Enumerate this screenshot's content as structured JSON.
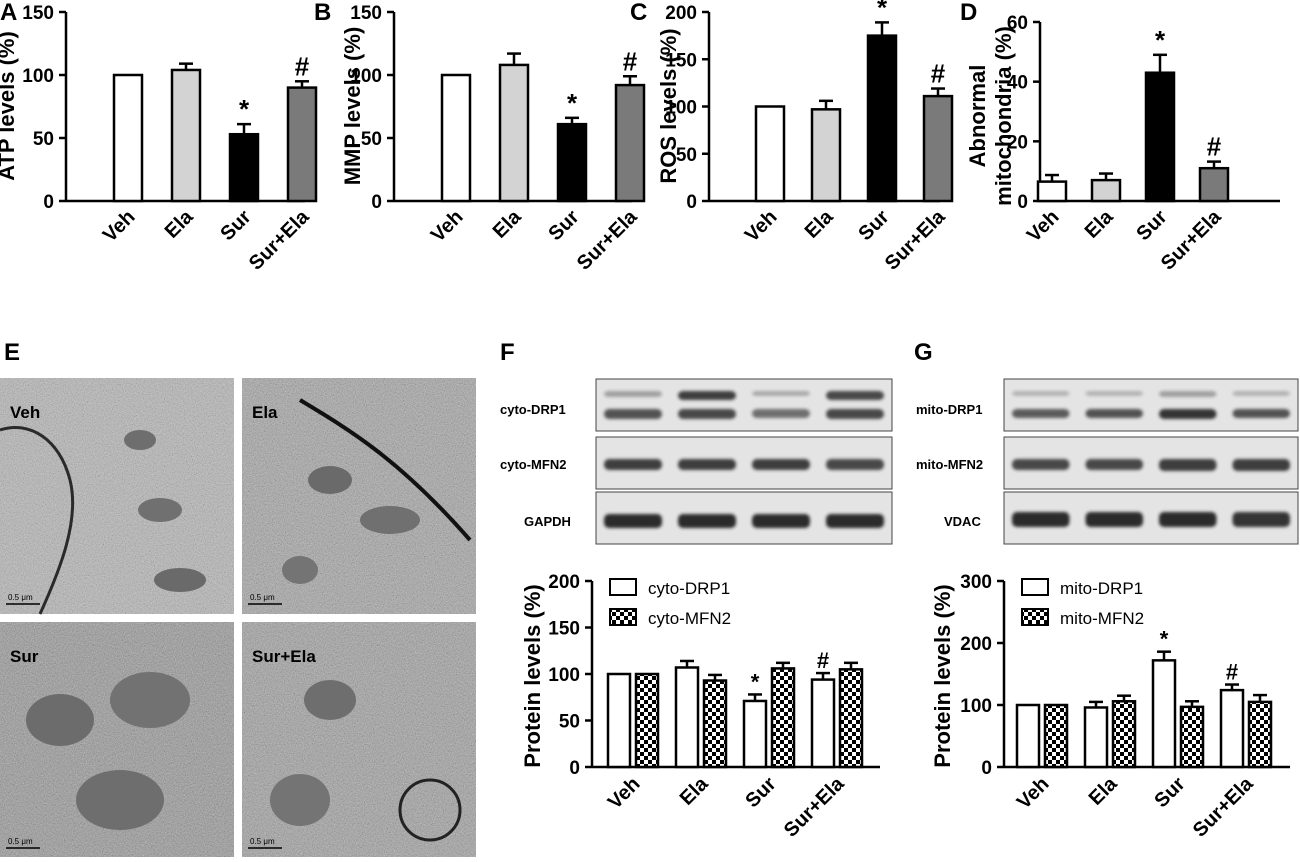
{
  "chart_data": [
    {
      "panel": "A",
      "type": "bar",
      "ylabel": "ATP levels (%)",
      "categories": [
        "Veh",
        "Ela",
        "Sur",
        "Sur+Ela"
      ],
      "values": [
        100,
        104,
        53,
        90
      ],
      "errors": [
        0,
        5,
        8,
        5
      ],
      "colors": [
        "#ffffff",
        "#d3d3d3",
        "#000000",
        "#7a7a7a"
      ],
      "annotations": [
        "",
        "",
        "*",
        "#"
      ],
      "ylim": [
        0,
        150
      ],
      "yticks": [
        0,
        50,
        100,
        150
      ]
    },
    {
      "panel": "B",
      "type": "bar",
      "ylabel": "MMP levels (%)",
      "categories": [
        "Veh",
        "Ela",
        "Sur",
        "Sur+Ela"
      ],
      "values": [
        100,
        108,
        61,
        92
      ],
      "errors": [
        0,
        9,
        5,
        7
      ],
      "colors": [
        "#ffffff",
        "#d3d3d3",
        "#000000",
        "#7a7a7a"
      ],
      "annotations": [
        "",
        "",
        "*",
        "#"
      ],
      "ylim": [
        0,
        150
      ],
      "yticks": [
        0,
        50,
        100,
        150
      ]
    },
    {
      "panel": "C",
      "type": "bar",
      "ylabel": "ROS levels (%)",
      "categories": [
        "Veh",
        "Ela",
        "Sur",
        "Sur+Ela"
      ],
      "values": [
        100,
        97,
        175,
        111
      ],
      "errors": [
        0,
        9,
        14,
        8
      ],
      "colors": [
        "#ffffff",
        "#d3d3d3",
        "#000000",
        "#7a7a7a"
      ],
      "annotations": [
        "",
        "",
        "*",
        "#"
      ],
      "ylim": [
        0,
        200
      ],
      "yticks": [
        0,
        50,
        100,
        150,
        200
      ]
    },
    {
      "panel": "D",
      "type": "bar",
      "ylabel": [
        "Abnormal",
        "mitochondria (%)"
      ],
      "categories": [
        "Veh",
        "Ela",
        "Sur",
        "Sur+Ela"
      ],
      "values": [
        6.5,
        7,
        43,
        11
      ],
      "errors": [
        2.2,
        2.2,
        6,
        2.2
      ],
      "colors": [
        "#ffffff",
        "#d3d3d3",
        "#000000",
        "#7a7a7a"
      ],
      "annotations": [
        "",
        "",
        "*",
        "#"
      ],
      "ylim": [
        0,
        60
      ],
      "yticks": [
        0,
        20,
        40,
        60
      ]
    },
    {
      "panel": "F",
      "type": "bar",
      "ylabel": "Protein levels (%)",
      "categories": [
        "Veh",
        "Ela",
        "Sur",
        "Sur+Ela"
      ],
      "series": [
        {
          "name": "cyto-DRP1",
          "values": [
            100,
            107,
            71,
            94
          ],
          "errors": [
            0,
            7,
            7,
            7
          ],
          "annotations": [
            "",
            "",
            "*",
            "#"
          ]
        },
        {
          "name": "cyto-MFN2",
          "values": [
            100,
            93,
            106,
            105
          ],
          "errors": [
            0,
            6,
            6,
            7
          ],
          "annotations": [
            "",
            "",
            "",
            ""
          ]
        }
      ],
      "ylim": [
        0,
        200
      ],
      "yticks": [
        0,
        50,
        100,
        150,
        200
      ],
      "legend": "top-left"
    },
    {
      "panel": "G",
      "type": "bar",
      "ylabel": "Protein levels (%)",
      "categories": [
        "Veh",
        "Ela",
        "Sur",
        "Sur+Ela"
      ],
      "series": [
        {
          "name": "mito-DRP1",
          "values": [
            100,
            96,
            172,
            124
          ],
          "errors": [
            0,
            9,
            14,
            9
          ],
          "annotations": [
            "",
            "",
            "*",
            "#"
          ]
        },
        {
          "name": "mito-MFN2",
          "values": [
            100,
            106,
            97,
            105
          ],
          "errors": [
            0,
            9,
            9,
            11
          ],
          "annotations": [
            "",
            "",
            "",
            ""
          ]
        }
      ],
      "ylim": [
        0,
        300
      ],
      "yticks": [
        0,
        100,
        200,
        300
      ],
      "legend": "top-left"
    }
  ],
  "panel_e": {
    "letter": "E",
    "tiles": [
      {
        "label": "Veh",
        "scale": "0.5 μm"
      },
      {
        "label": "Ela",
        "scale": "0.5 μm"
      },
      {
        "label": "Sur",
        "scale": "0.5 μm"
      },
      {
        "label": "Sur+Ela",
        "scale": "0.5 μm"
      }
    ]
  },
  "blots": [
    {
      "letter": "F",
      "rows": [
        "cyto-DRP1",
        "cyto-MFN2",
        "GAPDH"
      ]
    },
    {
      "letter": "G",
      "rows": [
        "mito-DRP1",
        "mito-MFN2",
        "VDAC"
      ]
    }
  ]
}
